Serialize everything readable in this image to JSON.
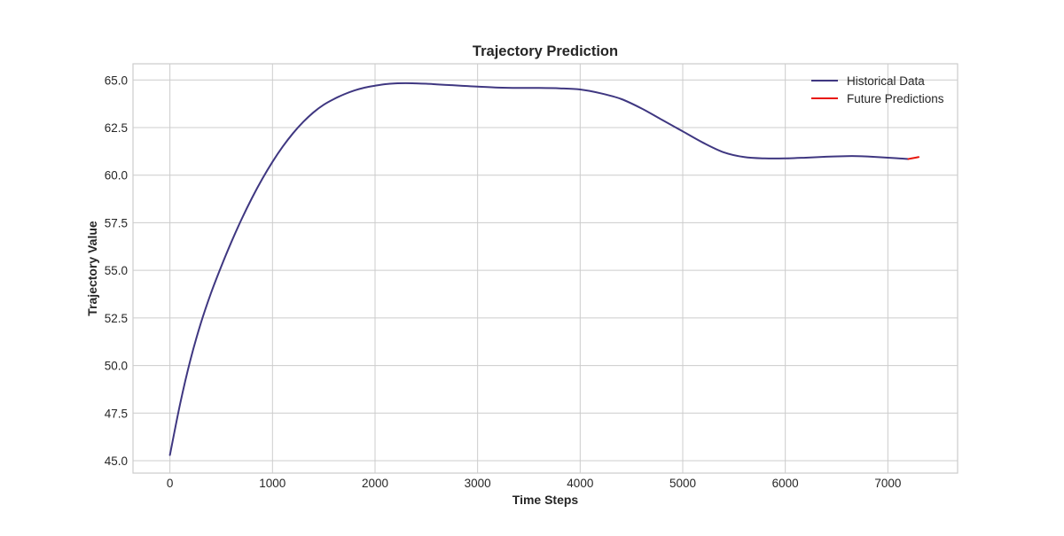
{
  "chart_data": {
    "type": "line",
    "title": "Trajectory Prediction",
    "xlabel": "Time Steps",
    "ylabel": "Trajectory Value",
    "xlim": [
      -360,
      7680
    ],
    "ylim": [
      44.35,
      65.85
    ],
    "x_ticks": [
      0,
      1000,
      2000,
      3000,
      4000,
      5000,
      6000,
      7000
    ],
    "x_tick_labels": [
      "0",
      "1000",
      "2000",
      "3000",
      "4000",
      "5000",
      "6000",
      "7000"
    ],
    "y_ticks": [
      45.0,
      47.5,
      50.0,
      52.5,
      55.0,
      57.5,
      60.0,
      62.5,
      65.0
    ],
    "y_tick_labels": [
      "45.0",
      "47.5",
      "50.0",
      "52.5",
      "55.0",
      "57.5",
      "60.0",
      "62.5",
      "65.0"
    ],
    "grid": true,
    "legend_position": "top-right",
    "series": [
      {
        "name": "Historical Data",
        "color": "#3f3781",
        "x": [
          0,
          100,
          200,
          300,
          400,
          500,
          600,
          700,
          800,
          900,
          1000,
          1100,
          1200,
          1300,
          1400,
          1500,
          1600,
          1700,
          1800,
          1900,
          2000,
          2100,
          2200,
          2300,
          2400,
          2500,
          2600,
          2700,
          2800,
          2900,
          3000,
          3200,
          3400,
          3600,
          3800,
          4000,
          4200,
          4400,
          4600,
          4800,
          5000,
          5200,
          5400,
          5600,
          5800,
          6000,
          6200,
          6400,
          6600,
          6700,
          6800,
          7000,
          7200
        ],
        "y": [
          45.3,
          48.0,
          50.3,
          52.2,
          53.8,
          55.2,
          56.5,
          57.7,
          58.8,
          59.8,
          60.7,
          61.5,
          62.2,
          62.8,
          63.3,
          63.7,
          64.0,
          64.25,
          64.45,
          64.6,
          64.7,
          64.78,
          64.82,
          64.83,
          64.82,
          64.8,
          64.77,
          64.74,
          64.71,
          64.68,
          64.65,
          64.6,
          64.58,
          64.58,
          64.56,
          64.5,
          64.3,
          64.0,
          63.5,
          62.9,
          62.3,
          61.7,
          61.2,
          60.95,
          60.88,
          60.88,
          60.92,
          60.97,
          61.0,
          61.0,
          60.98,
          60.92,
          60.85
        ]
      },
      {
        "name": "Future Predictions",
        "color": "#e8160c",
        "x": [
          7200,
          7250,
          7300
        ],
        "y": [
          60.85,
          60.9,
          60.95
        ]
      }
    ]
  }
}
